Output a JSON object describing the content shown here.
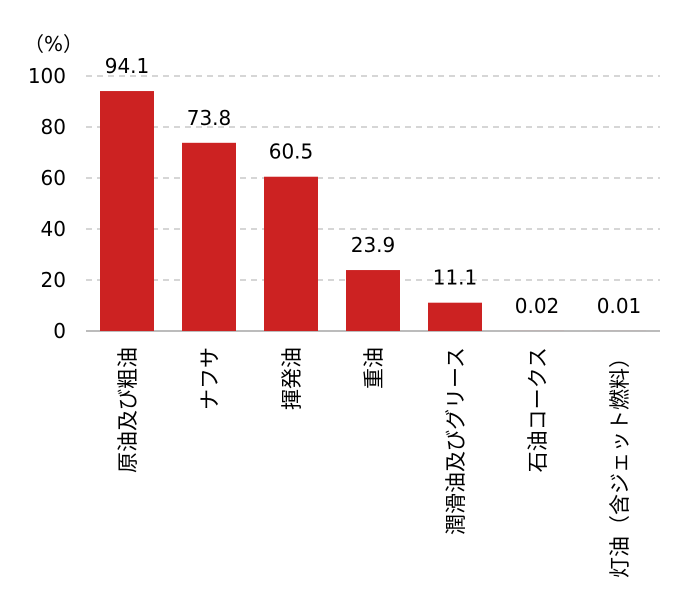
{
  "chart_data": {
    "type": "bar",
    "unit_label": "（%）",
    "categories": [
      "原油及び粗油",
      "ナフサ",
      "揮発油",
      "重油",
      "潤滑油及びグリース",
      "石油コークス",
      "灯油（含ジェット燃料）"
    ],
    "values": [
      94.1,
      73.8,
      60.5,
      23.9,
      11.1,
      0.02,
      0.01
    ],
    "value_labels": [
      "94.1",
      "73.8",
      "60.5",
      "23.9",
      "11.1",
      "0.02",
      "0.01"
    ],
    "ylim": [
      0,
      100
    ],
    "yticks": [
      0,
      20,
      40,
      60,
      80,
      100
    ],
    "grid": true,
    "bar_color": "#cc2222",
    "grid_color": "#c8c8c8",
    "axis_color": "#a6a6a6"
  }
}
